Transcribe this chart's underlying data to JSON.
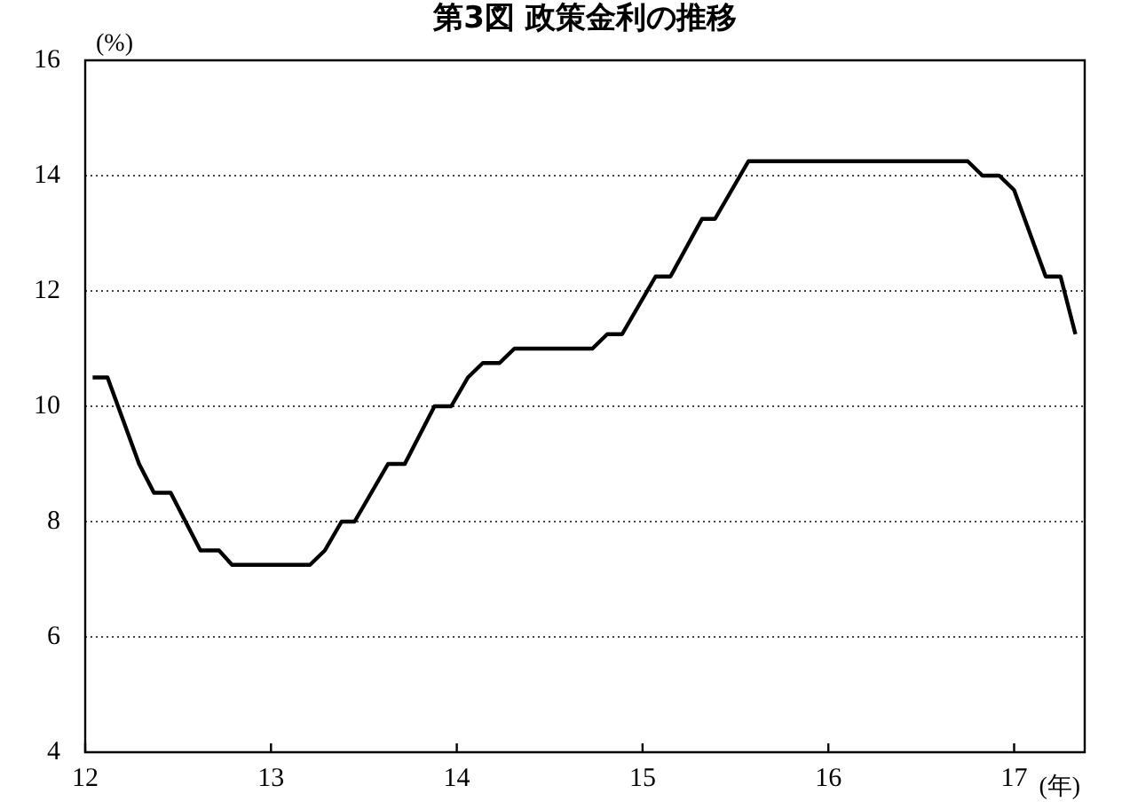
{
  "chart_data": {
    "type": "line",
    "title": "第3図 政策金利の推移",
    "xlabel": "(年)",
    "ylabel": "(%)",
    "x": [
      12.04,
      12.12,
      12.29,
      12.37,
      12.46,
      12.62,
      12.72,
      12.79,
      13.21,
      13.29,
      13.38,
      13.45,
      13.63,
      13.72,
      13.88,
      13.97,
      14.06,
      14.14,
      14.23,
      14.31,
      14.73,
      14.81,
      14.89,
      15.07,
      15.15,
      15.32,
      15.39,
      15.57,
      16.75,
      16.83,
      16.92,
      17.0,
      17.17,
      17.25,
      17.33
    ],
    "series": [
      {
        "color": "#000000",
        "values": [
          10.5,
          10.5,
          9.0,
          8.5,
          8.5,
          7.5,
          7.5,
          7.25,
          7.25,
          7.5,
          8.0,
          8.0,
          9.0,
          9.0,
          10.0,
          10.0,
          10.5,
          10.75,
          10.75,
          11.0,
          11.0,
          11.25,
          11.25,
          12.25,
          12.25,
          13.25,
          13.25,
          14.25,
          14.25,
          14.0,
          14.0,
          13.75,
          12.25,
          12.25,
          11.25
        ]
      }
    ],
    "xlim": [
      12,
      17.38
    ],
    "xticks": [
      12,
      13,
      14,
      15,
      16,
      17
    ],
    "ylim": [
      4,
      16
    ],
    "yticks": [
      4,
      6,
      8,
      10,
      12,
      14,
      16
    ],
    "grid": "y",
    "legend": false,
    "marker": "none",
    "line_style": "solid"
  }
}
